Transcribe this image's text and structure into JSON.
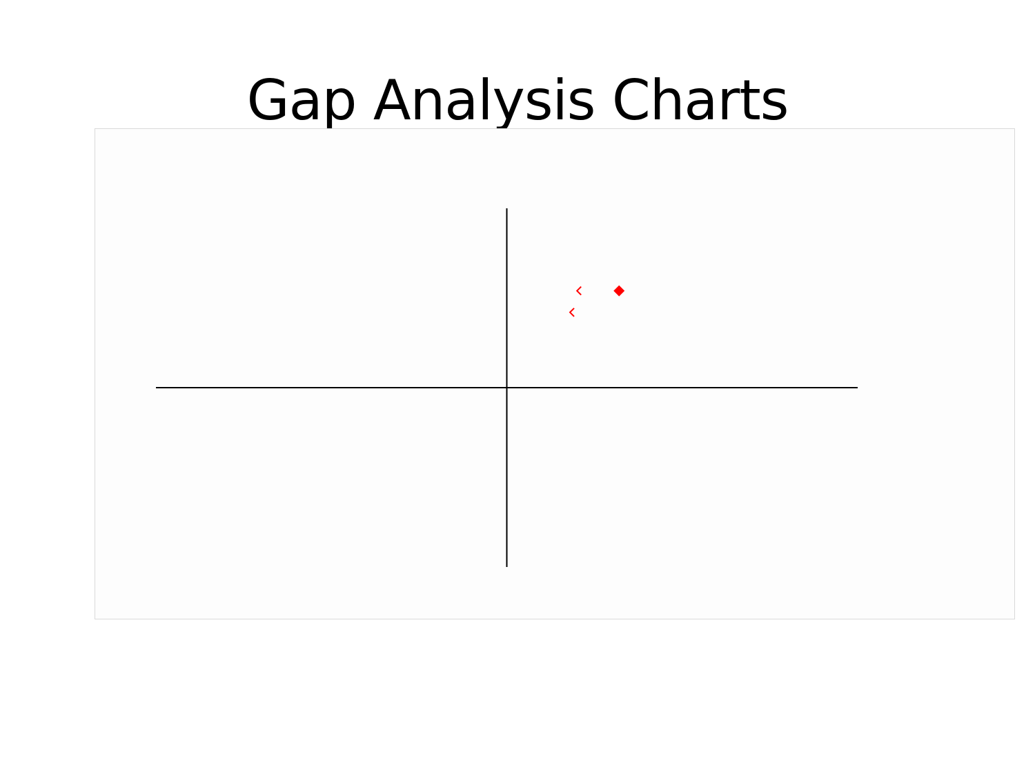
{
  "slide": {
    "title": "Gap Analysis Charts"
  },
  "chart_data": {
    "type": "scatter",
    "title": "",
    "xlabel": "",
    "ylabel": "",
    "xlim": [
      -1,
      1
    ],
    "ylim": [
      -1,
      1
    ],
    "grid": false,
    "axes_style": "quadrant-crosshair",
    "axis_color": "#000000",
    "marker_color": "#ff0000",
    "series": [
      {
        "marker": "diamond-filled",
        "points": [
          {
            "x": 0.32,
            "y": 0.54
          }
        ]
      },
      {
        "marker": "open-chevron",
        "points": [
          {
            "x": 0.2,
            "y": 0.54
          },
          {
            "x": 0.18,
            "y": 0.42
          }
        ]
      }
    ]
  }
}
